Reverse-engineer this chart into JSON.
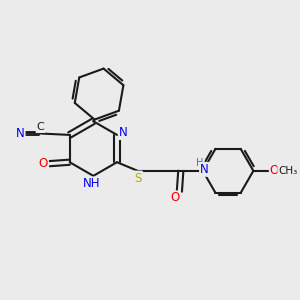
{
  "background_color": "#ebebeb",
  "bond_color": "#1a1a1a",
  "atom_colors": {
    "N": "#0000ee",
    "O": "#ee0000",
    "S": "#bbaa00",
    "C": "#1a1a1a",
    "H": "#009999"
  },
  "figsize": [
    3.0,
    3.0
  ],
  "dpi": 100
}
